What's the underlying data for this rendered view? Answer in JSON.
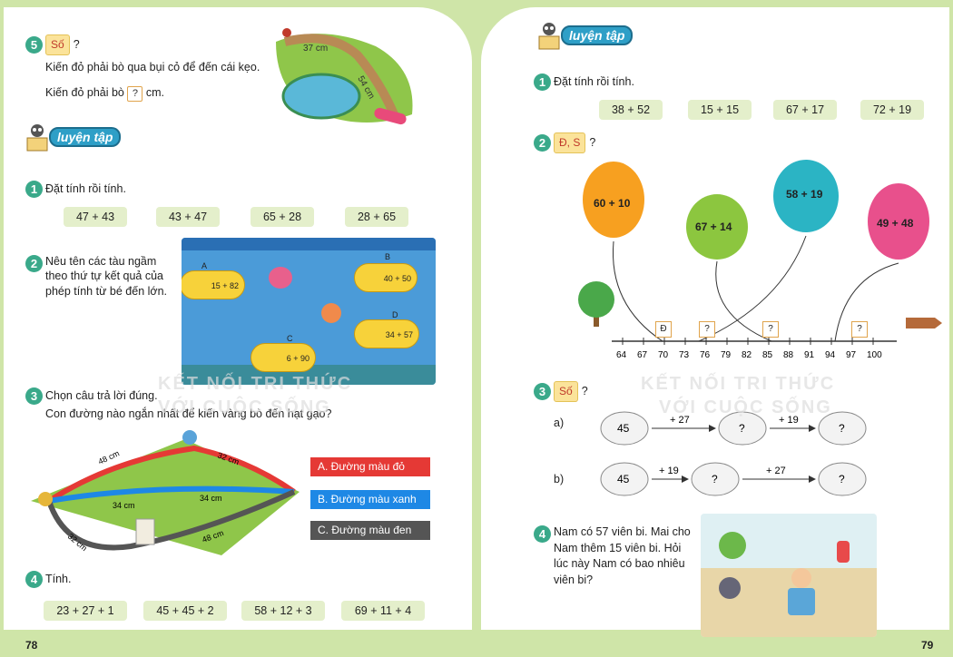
{
  "left_page": {
    "page_number": "78",
    "ex5": {
      "num": "5",
      "tag": "Số",
      "q": "?",
      "line1": "Kiến đỏ phải bò qua bụi cỏ để đến cái kẹo.",
      "line2a": "Kiến đỏ phải bò",
      "qbox": "?",
      "line2b": "cm.",
      "label1": "37 cm",
      "label2": "54 cm"
    },
    "luyen_tap": "luyện tập",
    "ex1": {
      "num": "1",
      "title": "Đặt tính rồi tính.",
      "items": [
        "47 + 43",
        "43 + 47",
        "65 + 28",
        "28 + 65"
      ]
    },
    "ex2": {
      "num": "2",
      "title": "Nêu tên các tàu ngầm theo thứ tự kết quả của phép tính từ bé đến lớn.",
      "subs": [
        {
          "letter": "A",
          "expr": "15 + 82"
        },
        {
          "letter": "B",
          "expr": "40 + 50"
        },
        {
          "letter": "C",
          "expr": "6 + 90"
        },
        {
          "letter": "D",
          "expr": "34 + 57"
        }
      ]
    },
    "ex3": {
      "num": "3",
      "title": "Chọn câu trả lời đúng.",
      "q": "Con đường nào ngắn nhất để kiến vàng bò đến hạt gạo?",
      "labels": [
        "48 cm",
        "32 cm",
        "34 cm",
        "34 cm",
        "32 cm",
        "48 cm"
      ],
      "options": [
        "A. Đường màu đỏ",
        "B. Đường màu xanh",
        "C. Đường màu đen"
      ],
      "option_colors": [
        "#e53935",
        "#1e88e5",
        "#555555"
      ]
    },
    "ex4": {
      "num": "4",
      "title": "Tính.",
      "items": [
        "23 + 27 + 1",
        "45 + 45 + 2",
        "58 + 12 + 3",
        "69 + 11 + 4"
      ]
    },
    "watermark1": "KẾT NỐI TRI THỨC",
    "watermark2": "VỚI CUỘC SỐNG"
  },
  "right_page": {
    "page_number": "79",
    "luyen_tap": "luyện tập",
    "ex1": {
      "num": "1",
      "title": "Đặt tính rồi tính.",
      "items": [
        "38 + 52",
        "15 + 15",
        "67 + 17",
        "72 + 19"
      ]
    },
    "ex2": {
      "num": "2",
      "tag": "Đ, S",
      "q": "?",
      "balloons": [
        {
          "expr": "60 + 10",
          "color": "#f7a020"
        },
        {
          "expr": "67 + 14",
          "color": "#8cc63f"
        },
        {
          "expr": "58 + 19",
          "color": "#2bb4c4"
        },
        {
          "expr": "49 + 48",
          "color": "#e8508c"
        }
      ],
      "boxes": [
        "Đ",
        "?",
        "?",
        "?"
      ],
      "ticks": [
        "64",
        "67",
        "70",
        "73",
        "76",
        "79",
        "82",
        "85",
        "88",
        "91",
        "94",
        "97",
        "100"
      ]
    },
    "ex3": {
      "num": "3",
      "tag": "Số",
      "q": "?",
      "a": {
        "label": "a)",
        "start": "45",
        "op1": "+ 27",
        "mid": "?",
        "op2": "+ 19",
        "end": "?"
      },
      "b": {
        "label": "b)",
        "start": "45",
        "op1": "+ 19",
        "mid": "?",
        "op2": "+ 27",
        "end": "?"
      }
    },
    "ex4": {
      "num": "4",
      "text": "Nam có 57 viên bi. Mai cho Nam thêm 15 viên bi. Hỏi lúc này Nam có bao nhiêu viên bi?"
    },
    "watermark1": "KẾT NỐI TRI THỨC",
    "watermark2": "VỚI CUỘC SỐNG"
  }
}
